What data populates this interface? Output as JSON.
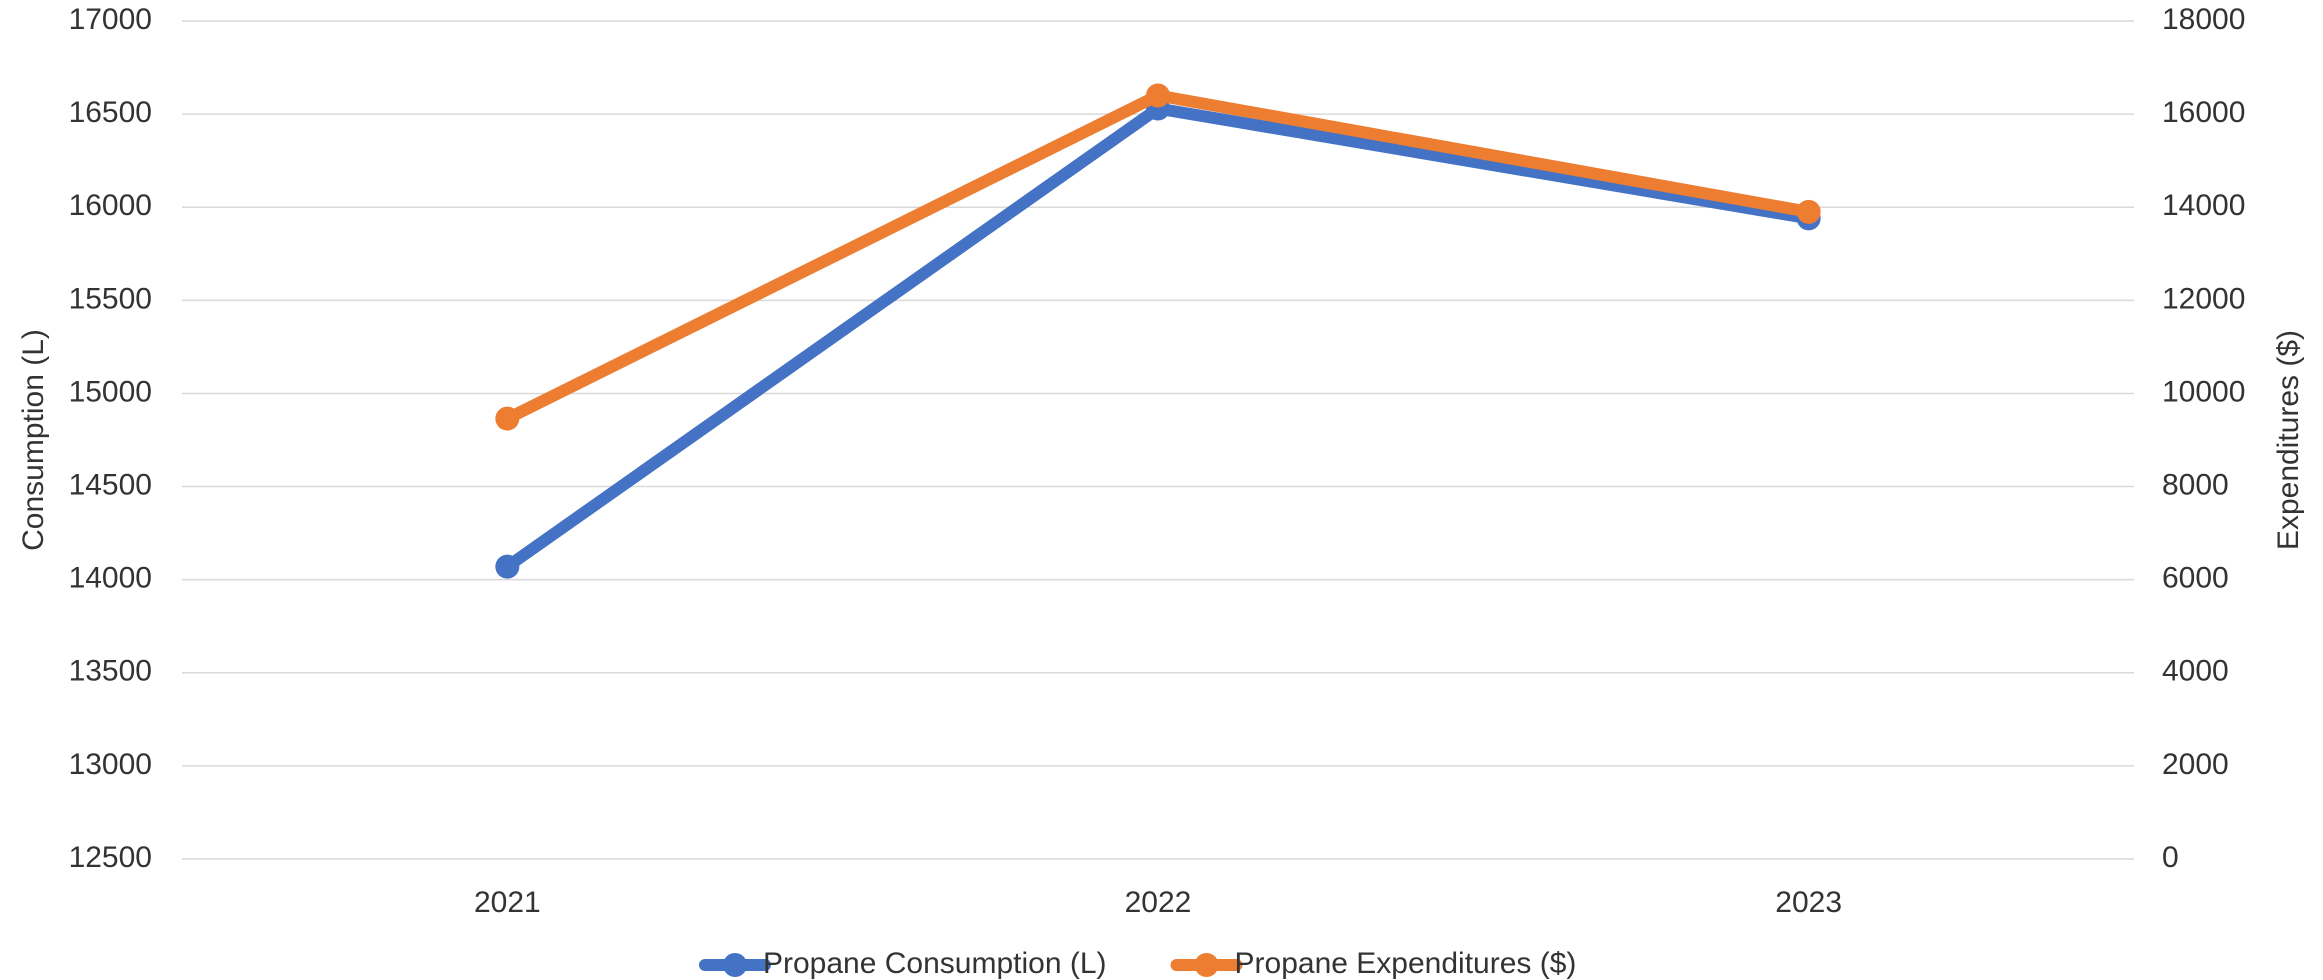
{
  "chart_data": {
    "type": "line",
    "categories": [
      "2021",
      "2022",
      "2023"
    ],
    "series": [
      {
        "name": "Propane Consumption (L)",
        "color": "#4472c4",
        "values": [
          14070,
          16530,
          15940
        ]
      },
      {
        "name": "Propane Expenditures ($)",
        "color": "#ed7d31",
        "values": [
          9460,
          16400,
          13900
        ],
        "axis": "y2"
      }
    ],
    "ylabel": "Consumption (L)",
    "y2label": "Expenditures ($)",
    "ylim": [
      12500,
      17000
    ],
    "yticks": [
      12500,
      13000,
      13500,
      14000,
      14500,
      15000,
      15500,
      16000,
      16500,
      17000
    ],
    "y2lim": [
      0,
      18000
    ],
    "y2ticks": [
      0,
      2000,
      4000,
      6000,
      8000,
      10000,
      12000,
      14000,
      16000,
      18000
    ],
    "grid": true,
    "legend": "bottom"
  }
}
